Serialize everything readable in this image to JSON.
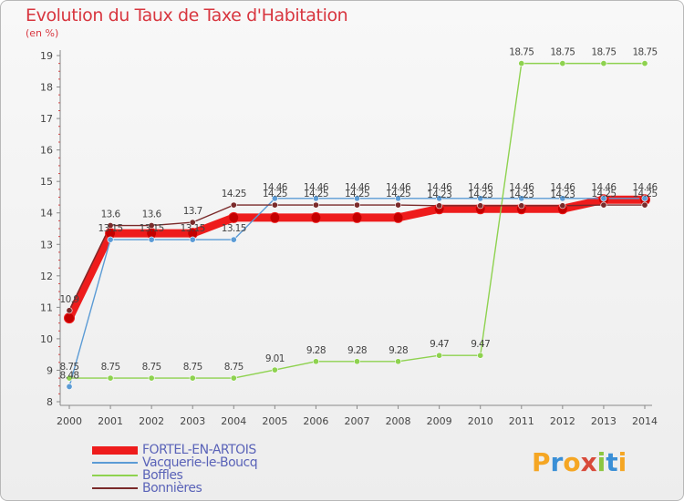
{
  "title": "Evolution du Taux de Taxe d'Habitation",
  "subtitle": "(en %)",
  "logo": {
    "letters": [
      "P",
      "r",
      "o",
      "x",
      "i",
      "t",
      "i"
    ],
    "colors": [
      "#f5a623",
      "#3a8fd6",
      "#f5a623",
      "#d84a3a",
      "#8cc63f",
      "#3a8fd6",
      "#f5a623"
    ]
  },
  "chart_data": {
    "type": "line",
    "title": "Evolution du Taux de Taxe d'Habitation",
    "ylabel": "(en %)",
    "xlabel": "",
    "x": [
      "2000",
      "2001",
      "2002",
      "2003",
      "2004",
      "2005",
      "2006",
      "2007",
      "2008",
      "2009",
      "2010",
      "2011",
      "2012",
      "2013",
      "2014"
    ],
    "y_ticks": [
      "8",
      "9",
      "10",
      "11",
      "12",
      "13",
      "14",
      "15",
      "16",
      "17",
      "18",
      "19"
    ],
    "ylim": [
      8,
      19
    ],
    "grid": false,
    "legend_position": "bottom-left",
    "series": [
      {
        "name": "FORTEL-EN-ARTOIS",
        "color": "#ee1c1c",
        "values": [
          10.66,
          13.35,
          13.35,
          13.35,
          13.85,
          13.85,
          13.85,
          13.85,
          13.85,
          14.13,
          14.13,
          14.13,
          14.13,
          14.42,
          14.42
        ],
        "labels": []
      },
      {
        "name": "Vacquerie-le-Boucq",
        "color": "#5b9bd5",
        "values": [
          8.48,
          13.15,
          13.15,
          13.15,
          13.15,
          14.46,
          14.46,
          14.46,
          14.46,
          14.46,
          14.46,
          14.46,
          14.46,
          14.46,
          14.46
        ],
        "labels": [
          "8.48",
          "13.15",
          "13.15",
          "13.15",
          "13.15",
          "14.46",
          "14.46",
          "14.46",
          "14.46",
          "14.46",
          "14.46",
          "14.46",
          "14.46",
          "14.46",
          "14.46"
        ]
      },
      {
        "name": "Boffles",
        "color": "#8ed24f",
        "values": [
          8.75,
          8.75,
          8.75,
          8.75,
          8.75,
          9.01,
          9.28,
          9.28,
          9.28,
          9.47,
          9.47,
          18.75,
          18.75,
          18.75,
          18.75
        ],
        "labels": [
          "8.75",
          "8.75",
          "8.75",
          "8.75",
          "8.75",
          "9.01",
          "9.28",
          "9.28",
          "9.28",
          "9.47",
          "9.47",
          "18.75",
          "18.75",
          "18.75",
          "18.75"
        ]
      },
      {
        "name": "Bonnières",
        "color": "#7a2a2a",
        "values": [
          10.9,
          13.6,
          13.6,
          13.7,
          14.25,
          14.25,
          14.25,
          14.25,
          14.25,
          14.23,
          14.23,
          14.23,
          14.23,
          14.25,
          14.25
        ],
        "labels": [
          "10.9",
          "13.6",
          "13.6",
          "13.7",
          "14.25",
          "14.25",
          "14.25",
          "14.25",
          "14.25",
          "14.23",
          "14.23",
          "14.23",
          "14.23",
          "14.25",
          "14.25"
        ]
      }
    ]
  }
}
